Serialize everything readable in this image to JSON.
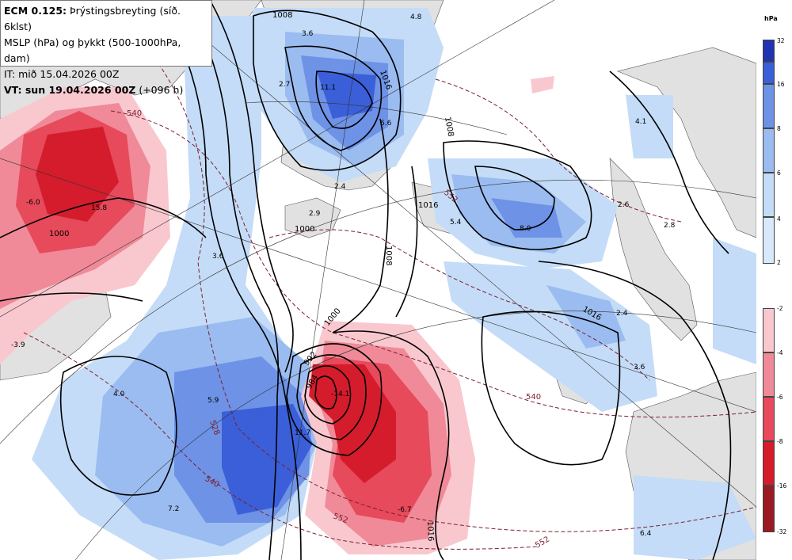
{
  "header": {
    "line1_bold": "ECM 0.125:",
    "line1_rest": " Þrýstingsbreyting (síð. 6klst)",
    "line2": "MSLP (hPa) og þykkt (500-1000hPa, dam)",
    "line3": "IT: mið 15.04.2026 00Z",
    "line4_bold": "VT: sun 19.04.2026 00Z",
    "line4_rest": " (+096 h)"
  },
  "legend": {
    "unit": "hPa",
    "positive": [
      {
        "label": "32",
        "color": "#2033b0"
      },
      {
        "label": "16",
        "color": "#3a5fd8"
      },
      {
        "label": "8",
        "color": "#6d92e6"
      },
      {
        "label": "6",
        "color": "#9bbcf0"
      },
      {
        "label": "4",
        "color": "#c4dcf7"
      },
      {
        "label": "2",
        "color": ""
      }
    ],
    "negative": [
      {
        "label": "-2",
        "color": "#f9c8cf"
      },
      {
        "label": "-4",
        "color": "#f08a98"
      },
      {
        "label": "-6",
        "color": "#e64a5b"
      },
      {
        "label": "-8",
        "color": "#d41c2c"
      },
      {
        "label": "-16",
        "color": "#9a1a24"
      },
      {
        "label": "-32",
        "color": ""
      }
    ]
  },
  "map_labels": {
    "pressure_isobars": [
      "1008",
      "1008",
      "1008",
      "1016",
      "1016",
      "1016",
      "1000",
      "1000",
      "1000",
      "992",
      "984",
      "1016"
    ],
    "thickness_contours": [
      "540",
      "528",
      "540",
      "552",
      "552",
      "540",
      "552"
    ],
    "tendency_values": [
      "4.8",
      "3.6",
      "11.1",
      "2.7",
      "6.6",
      "2.4",
      "-6.0",
      "15.8",
      "3.6",
      "2.9",
      "4.1",
      "5.4",
      "8.0",
      "2.6",
      "2.8",
      "2.4",
      "3.6",
      "-3.9",
      "4.0",
      "5.9",
      "-14.1",
      "11.7",
      "7.2",
      "-6.7",
      "6.4"
    ]
  },
  "colors": {
    "land": "#e1e1e1",
    "sea": "#ffffff",
    "isobar": "#000000",
    "thickness": "#7a2030"
  }
}
